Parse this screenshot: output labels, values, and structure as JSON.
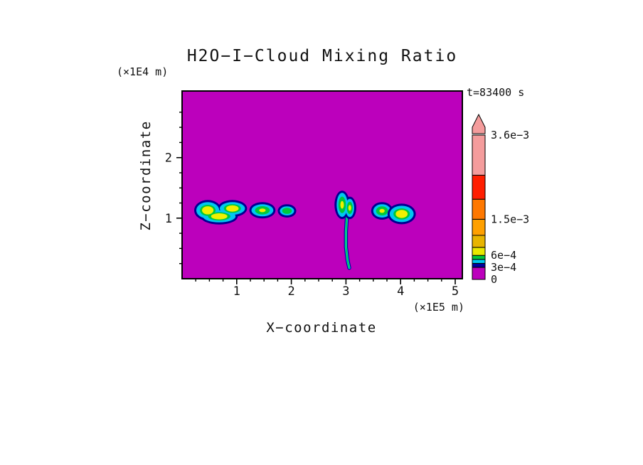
{
  "chart_data": {
    "type": "heatmap",
    "subtype": "filled-contour",
    "title": "H2O−I−Cloud Mixing Ratio",
    "time_annotation": "t=83400 s",
    "xlabel": "X−coordinate",
    "x_unit": "(×1E5 m)",
    "ylabel": "Z−coordinate",
    "y_unit": "(×1E4 m)",
    "xlim": [
      0,
      5.13
    ],
    "zlim": [
      0,
      3.1
    ],
    "x_ticks": [
      {
        "value": 1,
        "label": "1"
      },
      {
        "value": 2,
        "label": "2"
      },
      {
        "value": 3,
        "label": "3"
      },
      {
        "value": 4,
        "label": "4"
      },
      {
        "value": 5,
        "label": "5"
      }
    ],
    "y_ticks": [
      {
        "value": 1,
        "label": "1"
      },
      {
        "value": 2,
        "label": "2"
      }
    ],
    "minor_tick_step": 0.25,
    "background_value": 0,
    "background_color": "#BC00BC",
    "levels": [
      0,
      0.0003,
      0.0004,
      0.0005,
      0.0006,
      0.0008,
      0.0011,
      0.0015,
      0.002,
      0.0026,
      0.0036
    ],
    "layer_colors": {
      "outline": "#000092",
      "outer": "#00C8F0",
      "mid": "#00C83C",
      "core": "#F0F000"
    },
    "features": [
      {
        "name": "cloud-cluster-west",
        "core": true,
        "core_scale": 0.5,
        "peak_value": 0.0009,
        "lobes": [
          {
            "cx": 0.47,
            "cz": 1.13,
            "rx": 0.21,
            "rz": 0.135
          },
          {
            "cx": 0.92,
            "cz": 1.16,
            "rx": 0.23,
            "rz": 0.105
          },
          {
            "cx": 0.68,
            "cz": 1.03,
            "rx": 0.3,
            "rz": 0.1
          }
        ]
      },
      {
        "name": "cloud-blob-west-2",
        "core": true,
        "core_scale": 0.3,
        "peak_value": 0.0007,
        "lobes": [
          {
            "cx": 1.47,
            "cz": 1.13,
            "rx": 0.2,
            "rz": 0.1
          }
        ]
      },
      {
        "name": "cloud-blob-west-3",
        "core": false,
        "peak_value": 0.0005,
        "lobes": [
          {
            "cx": 1.92,
            "cz": 1.12,
            "rx": 0.13,
            "rz": 0.075
          }
        ]
      },
      {
        "name": "plume-head",
        "core": true,
        "core_scale": 0.32,
        "peak_value": 0.0008,
        "lobes": [
          {
            "cx": 2.93,
            "cz": 1.22,
            "rx": 0.1,
            "rz": 0.2
          },
          {
            "cx": 3.07,
            "cz": 1.17,
            "rx": 0.08,
            "rz": 0.15
          }
        ]
      },
      {
        "name": "cloud-blob-east-1",
        "core": true,
        "core_scale": 0.3,
        "peak_value": 0.0007,
        "lobes": [
          {
            "cx": 3.66,
            "cz": 1.12,
            "rx": 0.16,
            "rz": 0.11
          }
        ]
      },
      {
        "name": "cloud-blob-east-2",
        "core": true,
        "core_scale": 0.5,
        "peak_value": 0.0009,
        "lobes": [
          {
            "cx": 4.02,
            "cz": 1.07,
            "rx": 0.22,
            "rz": 0.135
          }
        ]
      }
    ],
    "plume_track": {
      "description": "narrow fallstreak descending from cloud near x=3",
      "x": [
        3.02,
        3.0,
        3.0,
        3.03,
        3.06
      ],
      "z": [
        1.05,
        0.78,
        0.52,
        0.3,
        0.18
      ]
    },
    "colorbar": {
      "max": 0.0036,
      "arrow_color": "#F49C9C",
      "segments": [
        {
          "from": 0,
          "to": 0.0003,
          "color": "#BC00BC"
        },
        {
          "from": 0.0003,
          "to": 0.0004,
          "color": "#0000A0"
        },
        {
          "from": 0.0004,
          "to": 0.0005,
          "color": "#00C8F0"
        },
        {
          "from": 0.0005,
          "to": 0.0006,
          "color": "#00C83C"
        },
        {
          "from": 0.0006,
          "to": 0.0008,
          "color": "#E8E800"
        },
        {
          "from": 0.0008,
          "to": 0.0011,
          "color": "#E8B400"
        },
        {
          "from": 0.0011,
          "to": 0.0015,
          "color": "#FFA000"
        },
        {
          "from": 0.0015,
          "to": 0.002,
          "color": "#FF7800"
        },
        {
          "from": 0.002,
          "to": 0.0026,
          "color": "#FF1E00"
        },
        {
          "from": 0.0026,
          "to": 0.0036,
          "color": "#F49C9C"
        }
      ],
      "labels": [
        {
          "value": 0.0036,
          "label": "3.6e−3"
        },
        {
          "value": 0.0015,
          "label": "1.5e−3"
        },
        {
          "value": 0.0006,
          "label": "6e−4"
        },
        {
          "value": 0.0003,
          "label": "3e−4"
        },
        {
          "value": 0,
          "label": "0"
        }
      ]
    }
  }
}
